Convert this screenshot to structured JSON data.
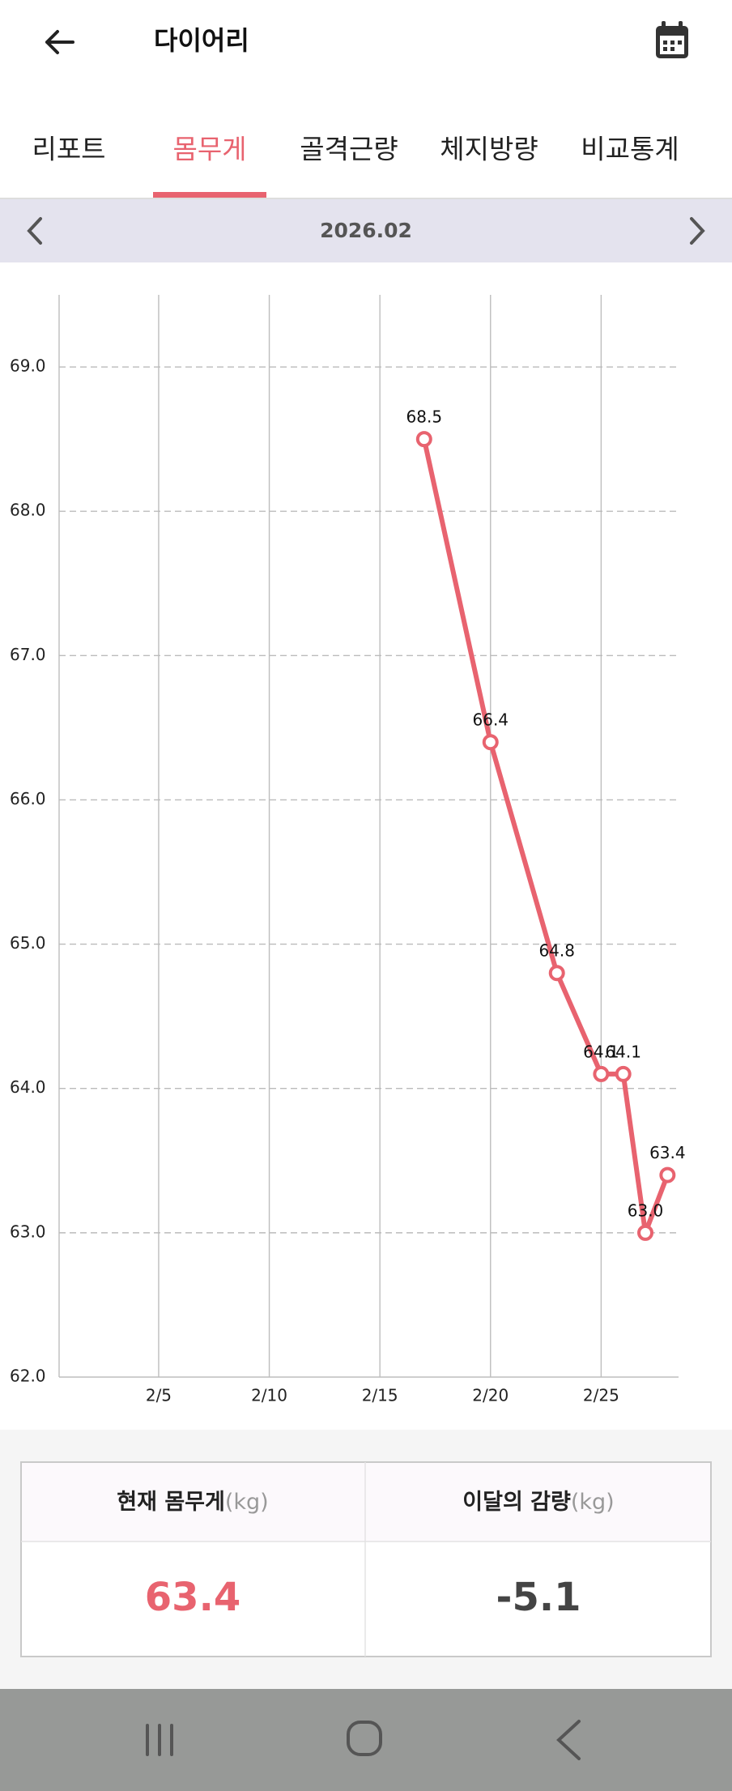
{
  "header": {
    "title": "다이어리"
  },
  "tabs": {
    "items": [
      "리포트",
      "몸무게",
      "골격근량",
      "체지방량",
      "비교통계"
    ],
    "active": 1
  },
  "month": "2026.02",
  "chart_data": {
    "type": "line",
    "x": [
      17,
      20,
      23,
      25,
      26,
      27,
      28
    ],
    "series": [
      {
        "color": "#e8636f",
        "values": [
          68.5,
          66.4,
          64.8,
          64.1,
          64.1,
          63.0,
          63.4
        ],
        "value_labels": [
          "68.5",
          "66.4",
          "64.8",
          "64.1",
          "64.1",
          "63.0",
          "63.4"
        ]
      }
    ],
    "xlim": [
      0.5,
      28.5
    ],
    "xticks": [
      {
        "value": 5,
        "label": "2/5"
      },
      {
        "value": 10,
        "label": "2/10"
      },
      {
        "value": 15,
        "label": "2/15"
      },
      {
        "value": 20,
        "label": "2/20"
      },
      {
        "value": 25,
        "label": "2/25"
      }
    ],
    "ylim": [
      62,
      69.5
    ],
    "yticks": [
      {
        "value": 62,
        "label": "62.0"
      },
      {
        "value": 63,
        "label": "63.0"
      },
      {
        "value": 64,
        "label": "64.0"
      },
      {
        "value": 65,
        "label": "65.0"
      },
      {
        "value": 66,
        "label": "66.0"
      },
      {
        "value": 67,
        "label": "67.0"
      },
      {
        "value": 68,
        "label": "68.0"
      },
      {
        "value": 69,
        "label": "69.0"
      }
    ],
    "grid": true
  },
  "summary": {
    "headers": [
      {
        "label": "현재 몸무게",
        "unit": "(kg)"
      },
      {
        "label": "이달의 감량",
        "unit": "(kg)"
      }
    ],
    "values": [
      "63.4",
      "-5.1"
    ]
  }
}
